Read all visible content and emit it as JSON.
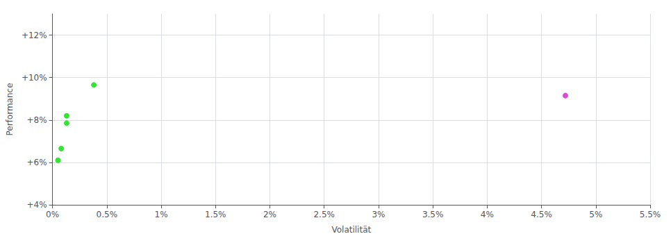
{
  "chart_data": {
    "type": "scatter",
    "xlabel": "Volatilität",
    "ylabel": "Performance",
    "xlim": [
      0,
      0.055
    ],
    "ylim": [
      0.04,
      0.13
    ],
    "xticks": [
      {
        "value": 0.0,
        "label": "0%"
      },
      {
        "value": 0.005,
        "label": "0.5%"
      },
      {
        "value": 0.01,
        "label": "1%"
      },
      {
        "value": 0.015,
        "label": "1.5%"
      },
      {
        "value": 0.02,
        "label": "2%"
      },
      {
        "value": 0.025,
        "label": "2.5%"
      },
      {
        "value": 0.03,
        "label": "3%"
      },
      {
        "value": 0.035,
        "label": "3.5%"
      },
      {
        "value": 0.04,
        "label": "4%"
      },
      {
        "value": 0.045,
        "label": "4.5%"
      },
      {
        "value": 0.05,
        "label": "5%"
      },
      {
        "value": 0.055,
        "label": "5.5%"
      }
    ],
    "yticks": [
      {
        "value": 0.04,
        "label": "+4%"
      },
      {
        "value": 0.06,
        "label": "+6%"
      },
      {
        "value": 0.08,
        "label": "+8%"
      },
      {
        "value": 0.1,
        "label": "+10%"
      },
      {
        "value": 0.12,
        "label": "+12%"
      }
    ],
    "grid": true,
    "series": [
      {
        "color": "#00dd00",
        "x": [
          0.0038,
          0.0013,
          0.0013,
          0.0008,
          0.0005
        ],
        "values": [
          0.0965,
          0.082,
          0.0785,
          0.0665,
          0.061
        ]
      },
      {
        "color": "#cc22cc",
        "x": [
          0.0472
        ],
        "values": [
          0.0915
        ]
      }
    ]
  }
}
